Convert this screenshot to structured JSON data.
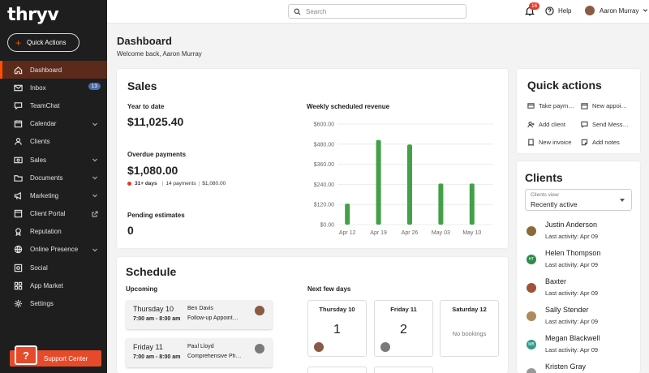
{
  "app": {
    "logo": "thryv"
  },
  "sidebar": {
    "quick_actions_label": "Quick Actions",
    "items": [
      {
        "label": "Dashboard",
        "icon": "home-icon",
        "active": true
      },
      {
        "label": "Inbox",
        "icon": "mail-icon",
        "badge": "13"
      },
      {
        "label": "TeamChat",
        "icon": "chat-icon"
      },
      {
        "label": "Calendar",
        "icon": "calendar-icon",
        "chevron": true
      },
      {
        "label": "Clients",
        "icon": "person-icon"
      },
      {
        "label": "Sales",
        "icon": "dollar-icon",
        "chevron": true
      },
      {
        "label": "Documents",
        "icon": "folder-icon",
        "chevron": true
      },
      {
        "label": "Marketing",
        "icon": "megaphone-icon",
        "chevron": true
      },
      {
        "label": "Client Portal",
        "icon": "portal-icon",
        "external": true
      },
      {
        "label": "Reputation",
        "icon": "badge-icon"
      },
      {
        "label": "Online Presence",
        "icon": "globe-icon",
        "chevron": true
      },
      {
        "label": "Social",
        "icon": "social-icon"
      },
      {
        "label": "App Market",
        "icon": "grid-icon"
      },
      {
        "label": "Settings",
        "icon": "gear-icon"
      }
    ],
    "support_label": "Support Center"
  },
  "topbar": {
    "search_placeholder": "Search",
    "notifications": "16",
    "help": "Help",
    "user": "Aaron Murray"
  },
  "page": {
    "title": "Dashboard",
    "subtitle": "Welcome back, Aaron Murray"
  },
  "sales": {
    "title": "Sales",
    "ytd_label": "Year to date",
    "ytd_value": "$11,025.40",
    "overdue_label": "Overdue payments",
    "overdue_value": "$1,080.00",
    "overdue_days": "31+ days",
    "overdue_count": "14 payments",
    "overdue_amount": "$1,080.00",
    "pending_label": "Pending estimates",
    "pending_value": "0"
  },
  "chart_data": {
    "type": "bar",
    "title": "Weekly scheduled revenue",
    "categories": [
      "Apr 12",
      "Apr 19",
      "Apr 26",
      "May 03",
      "May 10"
    ],
    "values": [
      125,
      505,
      478,
      245,
      245
    ],
    "y_ticks": [
      "$0.00",
      "$120.00",
      "$240.00",
      "$360.00",
      "$480.00",
      "$600.00"
    ],
    "ylim": [
      0,
      600
    ],
    "bar_color": "#43a047",
    "grid": true
  },
  "quick_actions": {
    "title": "Quick actions",
    "items": [
      {
        "label": "Take paym…",
        "icon": "card-icon"
      },
      {
        "label": "New appoi…",
        "icon": "calendar-icon"
      },
      {
        "label": "Add client",
        "icon": "person-add-icon"
      },
      {
        "label": "Send Mess…",
        "icon": "message-icon"
      },
      {
        "label": "New invoice",
        "icon": "invoice-icon"
      },
      {
        "label": "Add notes",
        "icon": "note-icon"
      }
    ]
  },
  "clients": {
    "title": "Clients",
    "view_label": "Clients view",
    "view_value": "Recently active",
    "list": [
      {
        "name": "Justin Anderson",
        "activity": "Last activity: Apr 09",
        "color": "#8a6a3a",
        "initials": ""
      },
      {
        "name": "Helen Thompson",
        "activity": "Last activity: Apr 09",
        "color": "#2e8b4a",
        "initials": "HT"
      },
      {
        "name": "Baxter",
        "activity": "Last activity: Apr 09",
        "color": "#a0523a",
        "initials": ""
      },
      {
        "name": "Sally Stender",
        "activity": "Last activity: Apr 09",
        "color": "#b08a5a",
        "initials": ""
      },
      {
        "name": "Megan Blackwell",
        "activity": "Last activity: Apr 09",
        "color": "#2e9a8a",
        "initials": "MB"
      },
      {
        "name": "Kristen Gray",
        "activity": "",
        "color": "#999999",
        "initials": ""
      }
    ]
  },
  "schedule": {
    "title": "Schedule",
    "upcoming_label": "Upcoming",
    "next_label": "Next few days",
    "appointments": [
      {
        "date": "Thursday 10",
        "time": "7:00 am - 8:00 am",
        "who": "Ben Davis",
        "what": "Follow-up Appoint…"
      },
      {
        "date": "Friday 11",
        "time": "7:00 am - 8:00 am",
        "who": "Paul Lloyd",
        "what": "Comprehensive Ph…"
      }
    ],
    "days": [
      {
        "label": "Thursday 10",
        "count": "1"
      },
      {
        "label": "Friday 11",
        "count": "2"
      },
      {
        "label": "Saturday 12",
        "count": "",
        "empty": "No bookings"
      }
    ]
  }
}
